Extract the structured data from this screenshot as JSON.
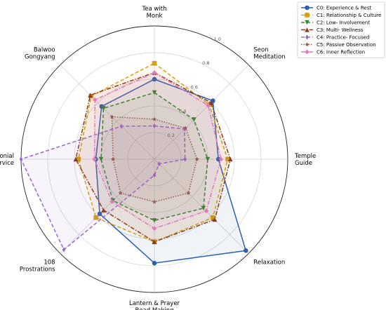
{
  "chart_data": {
    "type": "radar",
    "axes": [
      "Tea with\nMonk",
      "Seon\nMeditation",
      "Temple\nGuide",
      "Relaxation",
      "Lantern & Prayer\nBead Making",
      "108\nProstrations",
      "Ceremonial\nService",
      "Balwoo\nGongyang"
    ],
    "rlim": [
      0,
      1.0
    ],
    "rticks": [
      "0.2",
      "0.4",
      "0.6",
      "0.8",
      "1.0"
    ],
    "rtick_values": [
      0.2,
      0.4,
      0.6,
      0.8,
      1.0
    ],
    "grid": true,
    "legend_position": "top-right",
    "series": [
      {
        "name": "C0: Experience & Rest",
        "color": "#2a5fb0",
        "dash": "solid",
        "marker": "circle",
        "values": [
          0.6,
          0.62,
          0.48,
          0.97,
          0.78,
          0.58,
          0.44,
          0.56
        ]
      },
      {
        "name": "C1: Relationship & Culture",
        "color": "#d4a017",
        "dash": "dashed",
        "marker": "square",
        "values": [
          0.72,
          0.58,
          0.55,
          0.62,
          0.62,
          0.62,
          0.57,
          0.67
        ]
      },
      {
        "name": "C2: Low- Involvement",
        "color": "#2e8b2e",
        "dash": "dashed",
        "marker": "triangle-down",
        "values": [
          0.5,
          0.42,
          0.4,
          0.52,
          0.46,
          0.44,
          0.4,
          0.54
        ]
      },
      {
        "name": "C3: Multi- Wellness",
        "color": "#8b3a1a",
        "dash": "dashdot",
        "marker": "triangle-up",
        "values": [
          0.65,
          0.6,
          0.57,
          0.64,
          0.62,
          0.54,
          0.59,
          0.68
        ]
      },
      {
        "name": "C4: Practice- Focused",
        "color": "#9966cc",
        "dash": "dashed",
        "marker": "diamond",
        "values": [
          0.25,
          0.32,
          0.23,
          0.05,
          0.12,
          0.96,
          1.0,
          0.35
        ]
      },
      {
        "name": "C5: Passive Observation",
        "color": "#8b5a4a",
        "dash": "dotted",
        "marker": "star",
        "values": [
          0.3,
          0.33,
          0.32,
          0.36,
          0.32,
          0.36,
          0.31,
          0.45
        ]
      },
      {
        "name": "C6: Inner Reflection",
        "color": "#e377c2",
        "dash": "dashdot",
        "marker": "diamond-fat",
        "values": [
          0.65,
          0.57,
          0.5,
          0.55,
          0.52,
          0.45,
          0.45,
          0.63
        ]
      }
    ]
  }
}
